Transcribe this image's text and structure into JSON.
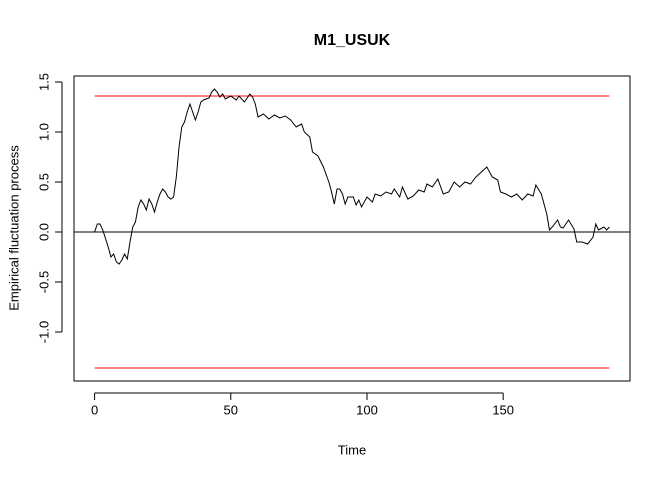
{
  "chart_data": {
    "type": "line",
    "title": "M1_USUK",
    "x_label": "Time",
    "y_label": "Empirical fluctuation process",
    "x": [
      0,
      1,
      2,
      3,
      5,
      6,
      7,
      8,
      9,
      10,
      11,
      12,
      13,
      14,
      15,
      16,
      17,
      18,
      19,
      20,
      21,
      22,
      23,
      24,
      25,
      26,
      27,
      28,
      29,
      30,
      31,
      32,
      33,
      34,
      35,
      36,
      37,
      38,
      39,
      40,
      42,
      43,
      44,
      45,
      46,
      47,
      48,
      50,
      52,
      53,
      55,
      57,
      58,
      59,
      60,
      62,
      64,
      66,
      68,
      70,
      72,
      74,
      76,
      77,
      79,
      80,
      82,
      84,
      86,
      87,
      88,
      89,
      90,
      91,
      92,
      93,
      95,
      96,
      97,
      98,
      100,
      102,
      103,
      105,
      107,
      109,
      110,
      112,
      113,
      115,
      117,
      119,
      121,
      122,
      124,
      126,
      128,
      130,
      132,
      134,
      136,
      138,
      140,
      142,
      144,
      146,
      148,
      149,
      151,
      153,
      155,
      157,
      159,
      161,
      162,
      164,
      165,
      166,
      167,
      168,
      170,
      171,
      172,
      174,
      176,
      177,
      179,
      181,
      183,
      184,
      185,
      187,
      188,
      189
    ],
    "series": [
      {
        "color": "#000000",
        "values": [
          0.0,
          0.08,
          0.08,
          0.02,
          -0.15,
          -0.25,
          -0.22,
          -0.3,
          -0.32,
          -0.28,
          -0.22,
          -0.27,
          -0.1,
          0.05,
          0.1,
          0.25,
          0.32,
          0.28,
          0.22,
          0.33,
          0.28,
          0.2,
          0.3,
          0.38,
          0.43,
          0.4,
          0.35,
          0.33,
          0.35,
          0.55,
          0.85,
          1.05,
          1.1,
          1.2,
          1.28,
          1.2,
          1.12,
          1.2,
          1.3,
          1.32,
          1.34,
          1.4,
          1.43,
          1.4,
          1.35,
          1.38,
          1.33,
          1.36,
          1.32,
          1.36,
          1.3,
          1.38,
          1.35,
          1.28,
          1.15,
          1.18,
          1.13,
          1.17,
          1.14,
          1.16,
          1.12,
          1.05,
          1.08,
          1.0,
          0.95,
          0.8,
          0.76,
          0.65,
          0.5,
          0.4,
          0.28,
          0.43,
          0.43,
          0.38,
          0.28,
          0.35,
          0.35,
          0.27,
          0.32,
          0.25,
          0.35,
          0.3,
          0.38,
          0.36,
          0.4,
          0.38,
          0.43,
          0.35,
          0.45,
          0.33,
          0.36,
          0.42,
          0.4,
          0.48,
          0.45,
          0.53,
          0.38,
          0.4,
          0.5,
          0.45,
          0.5,
          0.48,
          0.55,
          0.6,
          0.65,
          0.55,
          0.52,
          0.4,
          0.38,
          0.35,
          0.38,
          0.32,
          0.38,
          0.36,
          0.47,
          0.38,
          0.28,
          0.18,
          0.02,
          0.05,
          0.12,
          0.05,
          0.04,
          0.12,
          0.03,
          -0.1,
          -0.1,
          -0.12,
          -0.05,
          0.08,
          0.02,
          0.05,
          0.02,
          0.05
        ]
      }
    ],
    "boundaries": {
      "color": "#ff0000",
      "values": [
        1.36,
        -1.36
      ]
    },
    "reference_line": 0,
    "xlim": [
      -7.56,
      196.56
    ],
    "xticks": [
      0,
      50,
      100,
      150
    ],
    "ylim": [
      -1.49,
      1.56
    ],
    "yticks": [
      {
        "value": -1,
        "label": "-1.0"
      },
      -0.5,
      {
        "value": 0,
        "label": "0.0"
      },
      0.5,
      {
        "value": 1,
        "label": "1.0"
      },
      1.5
    ]
  }
}
